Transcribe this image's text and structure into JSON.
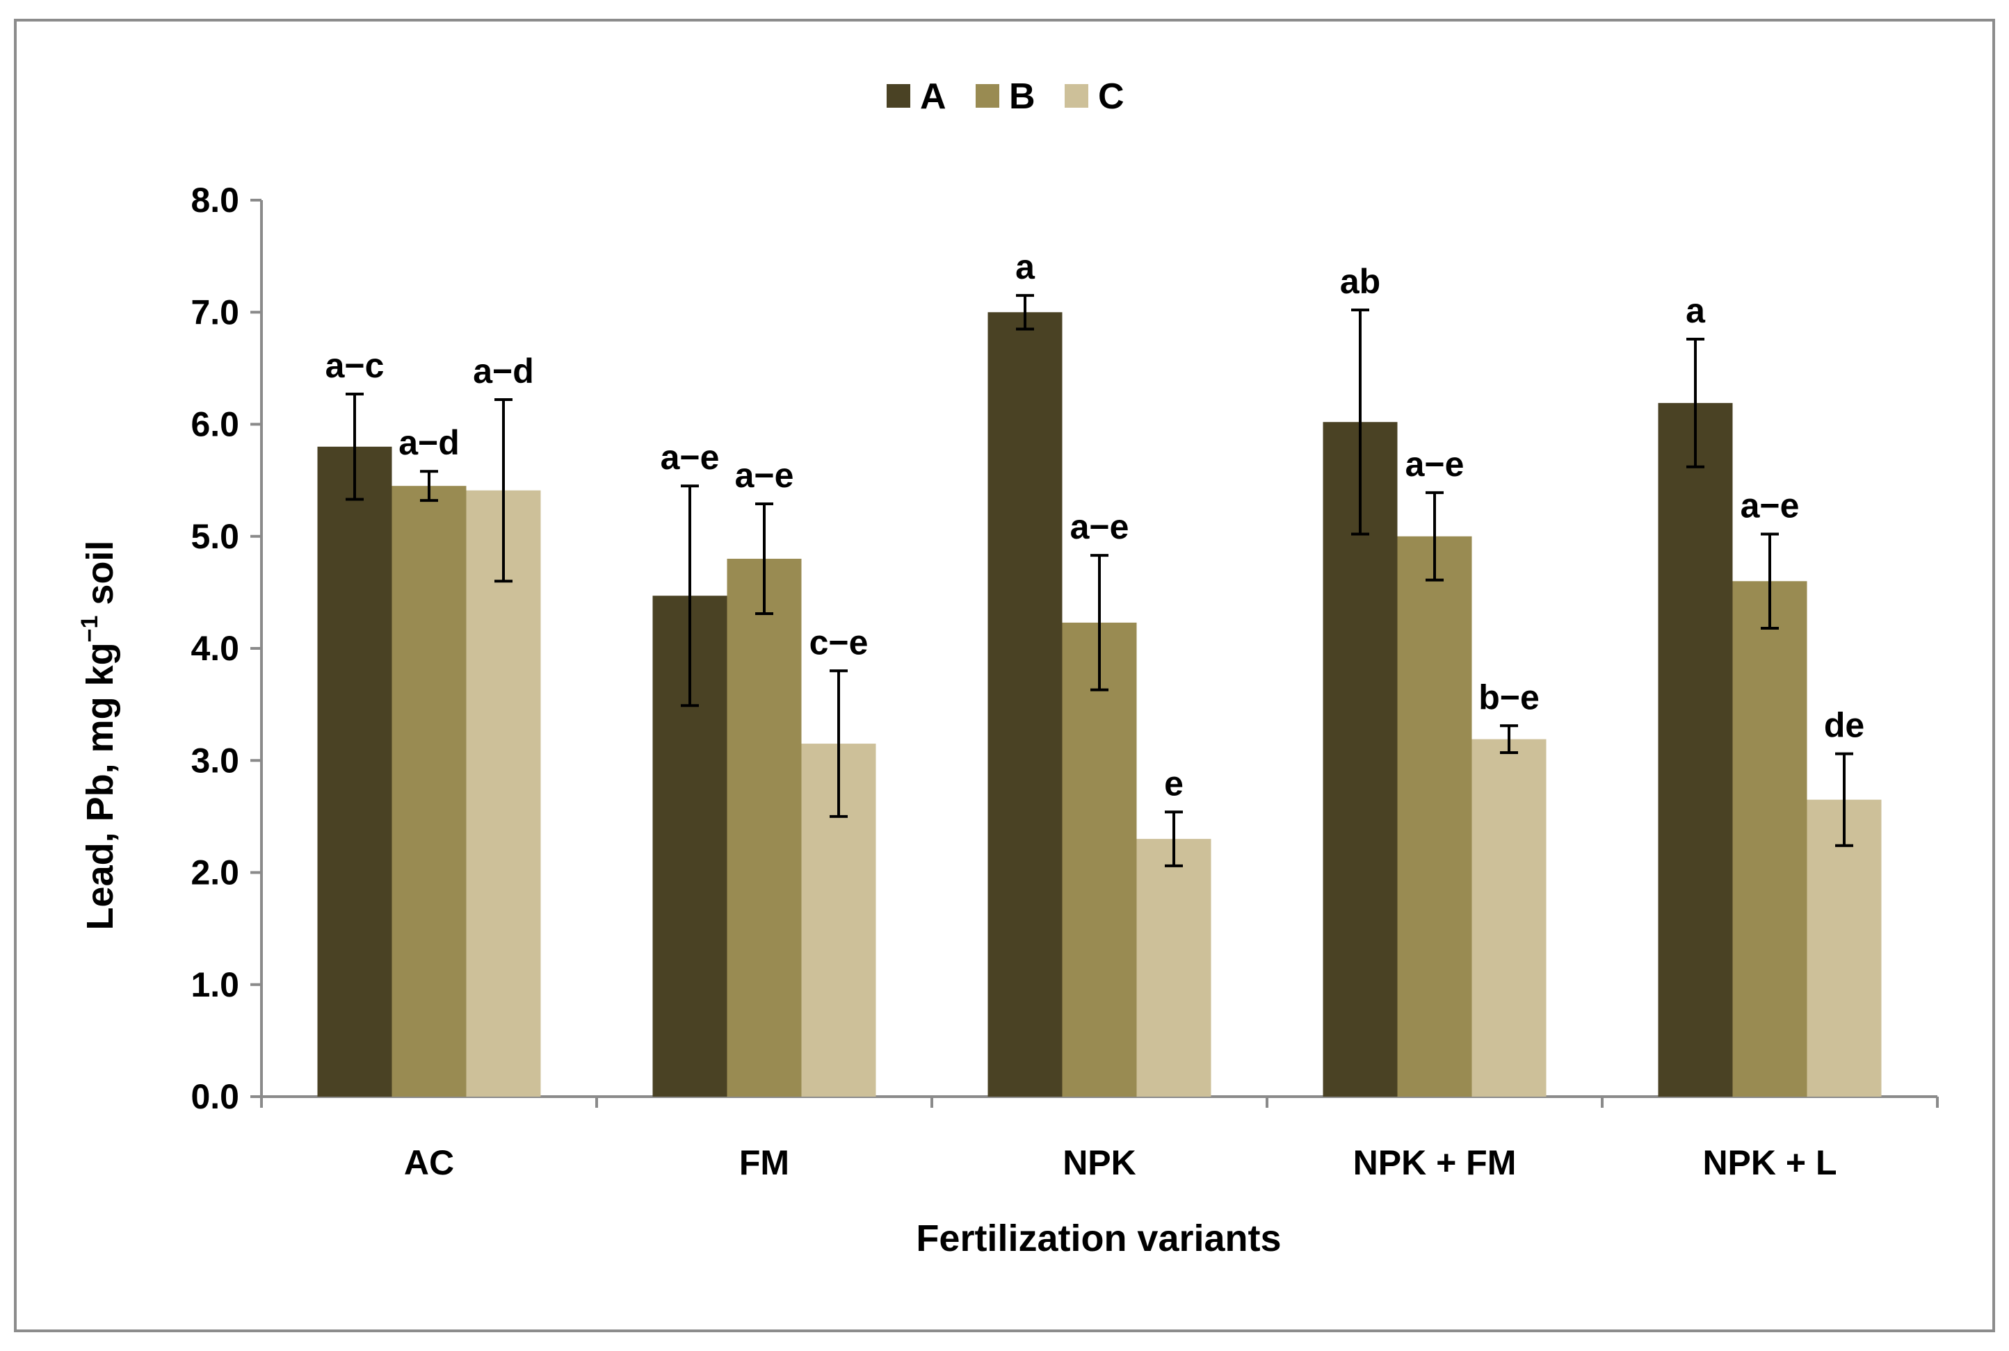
{
  "chart_data": {
    "type": "bar",
    "title": "",
    "xlabel": "Fertilization variants",
    "ylabel": {
      "main": "Lead, Pb, mg kg",
      "sup": "−1",
      "after": " soil"
    },
    "ylim": [
      0,
      8
    ],
    "yticks": [
      "0.0",
      "1.0",
      "2.0",
      "3.0",
      "4.0",
      "5.0",
      "6.0",
      "7.0",
      "8.0"
    ],
    "grid": false,
    "legend_position": "top-center",
    "categories": [
      "AC",
      "FM",
      "NPK",
      "NPK + FM",
      "NPK + L"
    ],
    "series": [
      {
        "name": "A",
        "color": "#4a4224",
        "values": [
          5.8,
          4.47,
          7.0,
          6.02,
          6.19
        ],
        "errors": [
          0.47,
          0.98,
          0.15,
          1.0,
          0.57
        ],
        "labels": [
          "a−c",
          "a−e",
          "a",
          "ab",
          "a"
        ]
      },
      {
        "name": "B",
        "color": "#998b52",
        "values": [
          5.45,
          4.8,
          4.23,
          5.0,
          4.6
        ],
        "errors": [
          0.13,
          0.49,
          0.6,
          0.39,
          0.42
        ],
        "labels": [
          "a−d",
          "a−e",
          "a−e",
          "a−e",
          "a−e"
        ]
      },
      {
        "name": "C",
        "color": "#cdc099",
        "values": [
          5.41,
          3.15,
          2.3,
          3.19,
          2.65
        ],
        "errors": [
          0.81,
          0.65,
          0.24,
          0.12,
          0.41
        ],
        "labels": [
          "a−d",
          "c−e",
          "e",
          "b−e",
          "de"
        ]
      }
    ]
  }
}
